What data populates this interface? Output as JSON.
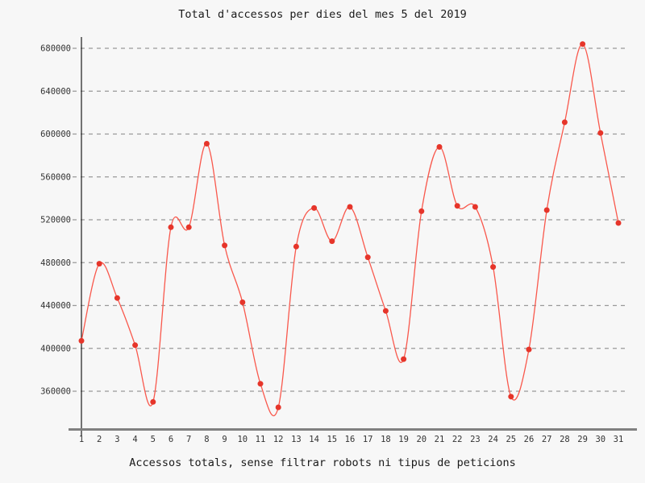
{
  "chart_data": {
    "type": "line",
    "title": "Total d'accessos per dies del mes 5 del 2019",
    "xlabel": "Accessos totals, sense filtrar robots ni tipus de peticions",
    "ylabel": "",
    "x": [
      1,
      2,
      3,
      4,
      5,
      6,
      7,
      8,
      9,
      10,
      11,
      12,
      13,
      14,
      15,
      16,
      17,
      18,
      19,
      20,
      21,
      22,
      23,
      24,
      25,
      26,
      27,
      28,
      29,
      30,
      31
    ],
    "values": [
      407000,
      479000,
      447000,
      403000,
      350000,
      513000,
      513000,
      591000,
      496000,
      443000,
      367000,
      345000,
      495000,
      531000,
      500000,
      532000,
      485000,
      435000,
      390000,
      528000,
      588000,
      533000,
      532000,
      476000,
      355000,
      399000,
      529000,
      611000,
      684000,
      601000,
      517000
    ],
    "y_ticks": [
      360000,
      400000,
      440000,
      480000,
      520000,
      560000,
      600000,
      640000,
      680000
    ],
    "ylim": [
      325000,
      689000
    ],
    "grid": "horizontal-dashed",
    "legend": "none",
    "smoothing": "spline",
    "colors": {
      "background": "#f7f7f7",
      "line": "#f9584c",
      "marker": "#e6352a",
      "grid": "#999999",
      "x_axis": "#808080",
      "y_axis": "#1a1a1a",
      "text": "#1a1a1a"
    }
  }
}
